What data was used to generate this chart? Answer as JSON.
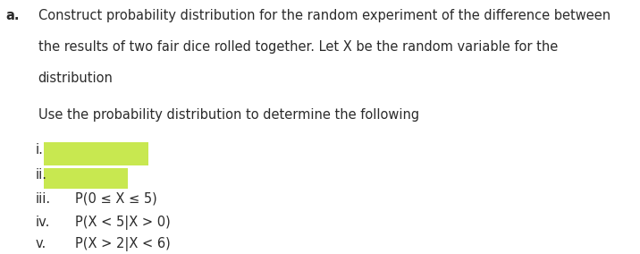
{
  "background_color": "#ffffff",
  "label_a": "a.",
  "line1": "Construct probability distribution for the random experiment of the difference between",
  "line2": "the results of two fair dice rolled together. Let X be the random variable for the",
  "line3": "distribution",
  "line4": "Use the probability distribution to determine the following",
  "roman_i": "i.",
  "roman_ii": "ii.",
  "roman_iii": "iii.",
  "roman_iv": "iv.",
  "roman_v": "v.",
  "text_iii": "P(0 ≤ X ≤ 5)",
  "text_iv": "P(X < 5|X > 0)",
  "text_v": "P(X > 2|X < 6)",
  "highlight_color": "#c8e850",
  "text_color": "#2b2b2b",
  "font_size_main": 10.5,
  "font_size_label": 10.5,
  "indent_a": 0.01,
  "indent_text": 0.08,
  "indent_roman": 0.065,
  "indent_items": 0.14
}
